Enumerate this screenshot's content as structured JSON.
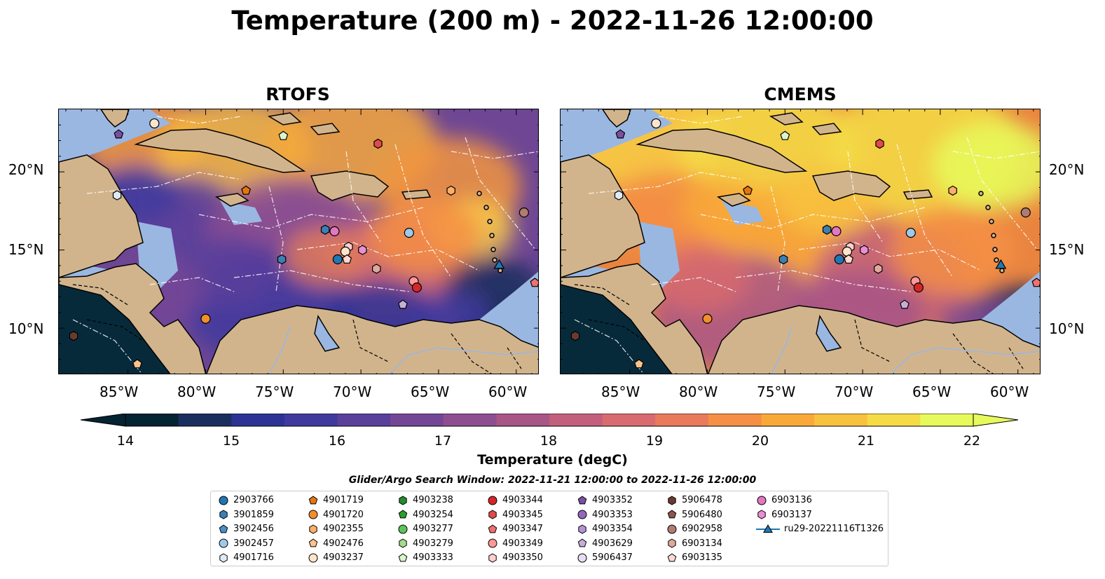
{
  "title": "Temperature (200 m) - 2022-11-26 12:00:00",
  "panels": [
    {
      "title": "RTOFS"
    },
    {
      "title": "CMEMS"
    }
  ],
  "axes": {
    "lon_ticks": [
      "85°W",
      "80°W",
      "75°W",
      "70°W",
      "65°W",
      "60°W"
    ],
    "lat_ticks": [
      "20°N",
      "15°N",
      "10°N"
    ]
  },
  "colorbar": {
    "label": "Temperature (degC)",
    "ticks": [
      "14",
      "15",
      "16",
      "17",
      "18",
      "19",
      "20",
      "21",
      "22"
    ],
    "range": [
      14,
      22
    ],
    "colors": [
      "#042333",
      "#1b2f5e",
      "#2c3395",
      "#403a9e",
      "#5a3f9b",
      "#744796",
      "#8e4f90",
      "#a85587",
      "#c15f7d",
      "#d86b6f",
      "#ea7a5c",
      "#f58f45",
      "#f9a93a",
      "#f8c23f",
      "#f5dc47",
      "#e8fa5b"
    ],
    "extend": "both"
  },
  "search_window": "Glider/Argo Search Window: 2022-11-21 12:00:00 to 2022-11-26 12:00:00",
  "legend": {
    "items": [
      {
        "label": "2903766",
        "marker": "circle",
        "color": "#1f77b4"
      },
      {
        "label": "3901859",
        "marker": "hexagon",
        "color": "#3b7fb5"
      },
      {
        "label": "3902456",
        "marker": "pentagon",
        "color": "#4a8fc8"
      },
      {
        "label": "3902457",
        "marker": "circle",
        "color": "#9ecae9"
      },
      {
        "label": "4901716",
        "marker": "hexagon",
        "color": "#deebf7"
      },
      {
        "label": "4901719",
        "marker": "pentagon",
        "color": "#e6760c"
      },
      {
        "label": "4901720",
        "marker": "circle",
        "color": "#f28e2b"
      },
      {
        "label": "4902355",
        "marker": "hexagon",
        "color": "#fdae6b"
      },
      {
        "label": "4902476",
        "marker": "pentagon",
        "color": "#fdc38d"
      },
      {
        "label": "4903237",
        "marker": "circle",
        "color": "#fde5cc"
      },
      {
        "label": "4903238",
        "marker": "hexagon",
        "color": "#238b2b"
      },
      {
        "label": "4903254",
        "marker": "pentagon",
        "color": "#2ca02c"
      },
      {
        "label": "4903277",
        "marker": "circle",
        "color": "#5cc35c"
      },
      {
        "label": "4903279",
        "marker": "hexagon",
        "color": "#a1dc8f"
      },
      {
        "label": "4903333",
        "marker": "pentagon",
        "color": "#d9f5d0"
      },
      {
        "label": "4903344",
        "marker": "circle",
        "color": "#d62728"
      },
      {
        "label": "4903345",
        "marker": "hexagon",
        "color": "#e04a4a"
      },
      {
        "label": "4903347",
        "marker": "pentagon",
        "color": "#f07070"
      },
      {
        "label": "4903349",
        "marker": "circle",
        "color": "#ff9896"
      },
      {
        "label": "4903350",
        "marker": "hexagon",
        "color": "#ffd0cf"
      },
      {
        "label": "4903352",
        "marker": "pentagon",
        "color": "#7b4ea3"
      },
      {
        "label": "4903353",
        "marker": "circle",
        "color": "#9467bd"
      },
      {
        "label": "4903354",
        "marker": "hexagon",
        "color": "#b294d6"
      },
      {
        "label": "4903629",
        "marker": "pentagon",
        "color": "#c5b0d5"
      },
      {
        "label": "5906437",
        "marker": "circle",
        "color": "#e8dcf5"
      },
      {
        "label": "5906478",
        "marker": "hexagon",
        "color": "#6b3a2e"
      },
      {
        "label": "5906480",
        "marker": "pentagon",
        "color": "#8c564b"
      },
      {
        "label": "6902958",
        "marker": "circle",
        "color": "#b07c6f"
      },
      {
        "label": "6903134",
        "marker": "hexagon",
        "color": "#e0a89c"
      },
      {
        "label": "6903135",
        "marker": "pentagon",
        "color": "#ffd9d0"
      },
      {
        "label": "6903136",
        "marker": "circle",
        "color": "#e377c2"
      },
      {
        "label": "6903137",
        "marker": "hexagon",
        "color": "#e890d0"
      },
      {
        "label": "ru29-20221116T1326",
        "marker": "triangle-line",
        "color": "#1f77b4"
      }
    ]
  },
  "floats": [
    {
      "id": "4903237",
      "lon": -83.3,
      "lat": 23.1
    },
    {
      "id": "4903352",
      "lon": -85.6,
      "lat": 22.4
    },
    {
      "id": "4903333",
      "lon": -75.0,
      "lat": 22.3
    },
    {
      "id": "4903345",
      "lon": -68.9,
      "lat": 21.8
    },
    {
      "id": "4901716",
      "lon": -85.7,
      "lat": 18.5
    },
    {
      "id": "4901719",
      "lon": -77.4,
      "lat": 18.8
    },
    {
      "id": "4902355",
      "lon": -64.2,
      "lat": 18.8
    },
    {
      "id": "6902958",
      "lon": -59.5,
      "lat": 17.4
    },
    {
      "id": "3901859",
      "lon": -72.3,
      "lat": 16.3
    },
    {
      "id": "6903136",
      "lon": -71.7,
      "lat": 16.2
    },
    {
      "id": "3902457",
      "lon": -66.9,
      "lat": 16.1
    },
    {
      "id": "4903350",
      "lon": -70.8,
      "lat": 15.2
    },
    {
      "id": "4903237",
      "lon": -71.0,
      "lat": 14.9
    },
    {
      "id": "6903137",
      "lon": -69.9,
      "lat": 15.0
    },
    {
      "id": "6903135",
      "lon": -70.9,
      "lat": 14.4
    },
    {
      "id": "2903766",
      "lon": -71.5,
      "lat": 14.4
    },
    {
      "id": "3901859",
      "lon": -75.1,
      "lat": 14.4
    },
    {
      "id": "6903134",
      "lon": -69.0,
      "lat": 13.8
    },
    {
      "id": "4903349",
      "lon": -66.6,
      "lat": 13.0
    },
    {
      "id": "4903344",
      "lon": -66.4,
      "lat": 12.6
    },
    {
      "id": "4903629",
      "lon": -67.3,
      "lat": 11.5
    },
    {
      "id": "4903347",
      "lon": -58.8,
      "lat": 12.9
    },
    {
      "id": "4901720",
      "lon": -80.0,
      "lat": 10.6
    },
    {
      "id": "5906478",
      "lon": -88.5,
      "lat": 9.5
    },
    {
      "id": "4902476",
      "lon": -84.4,
      "lat": 7.7
    }
  ],
  "glider": {
    "id": "ru29-20221116T1326",
    "lon": -61.1,
    "lat": 14.0
  }
}
